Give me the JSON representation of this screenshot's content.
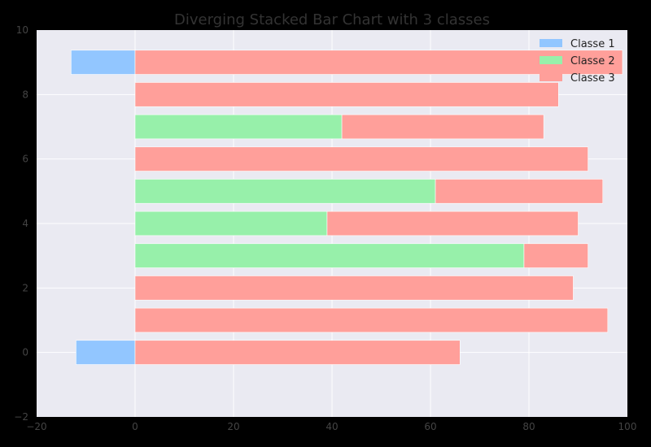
{
  "chart_data": {
    "type": "bar",
    "orientation": "horizontal",
    "stacked": true,
    "diverging": true,
    "title": "Diverging Stacked Bar Chart with 3 classes",
    "xlabel": "",
    "ylabel": "",
    "xlim": [
      -20,
      100
    ],
    "ylim": [
      -2,
      10
    ],
    "xticks": [
      -20,
      0,
      20,
      40,
      60,
      80,
      100
    ],
    "yticks": [
      -2,
      0,
      2,
      4,
      6,
      8,
      10
    ],
    "xtick_labels": [
      "−20",
      "0",
      "20",
      "40",
      "60",
      "80",
      "100"
    ],
    "ytick_labels": [
      "−2",
      "0",
      "2",
      "4",
      "6",
      "8",
      "10"
    ],
    "grid": true,
    "legend_position": "top-right",
    "bar_positions": [
      0,
      1,
      2,
      3,
      4,
      5,
      6,
      7,
      8,
      9
    ],
    "series": [
      {
        "name": "Classe 1",
        "color": "#92c6ff",
        "values": [
          -12,
          0,
          0,
          0,
          0,
          0,
          0,
          0,
          0,
          -13
        ]
      },
      {
        "name": "Classe 2",
        "color": "#97f0aa",
        "values": [
          0,
          0,
          0,
          79,
          39,
          61,
          0,
          42,
          0,
          0
        ]
      },
      {
        "name": "Classe 3",
        "color": "#ff9f9a",
        "values": [
          66,
          96,
          89,
          13,
          51,
          34,
          92,
          41,
          86,
          99
        ]
      }
    ]
  }
}
